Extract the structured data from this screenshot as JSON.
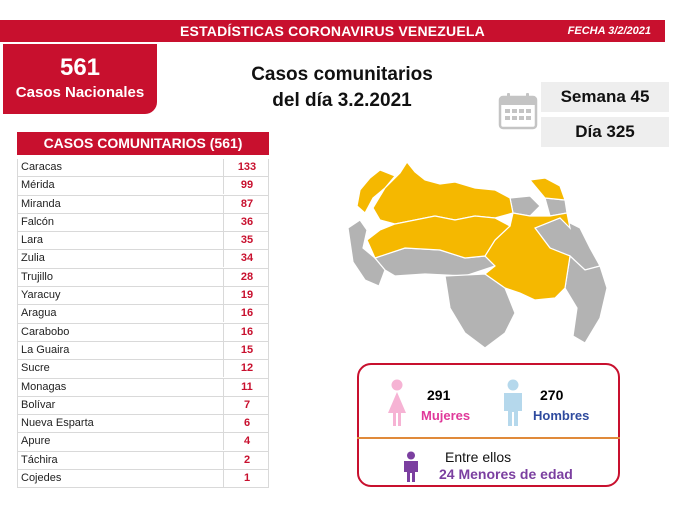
{
  "header": {
    "title": "ESTADÍSTICAS CORONAVIRUS VENEZUELA",
    "date": "FECHA 3/2/2021"
  },
  "national": {
    "count": "561",
    "label": "Casos Nacionales"
  },
  "heading": {
    "line1": "Casos comunitarios",
    "line2": "del día 3.2.2021"
  },
  "calendar": {
    "icon": "calendar-icon",
    "week": "Semana 45",
    "day": "Día 325"
  },
  "table": {
    "header": "CASOS COMUNITARIOS (561)",
    "rows": [
      {
        "state": "Caracas",
        "cases": "133"
      },
      {
        "state": "Mérida",
        "cases": "99"
      },
      {
        "state": "Miranda",
        "cases": "87"
      },
      {
        "state": "Falcón",
        "cases": "36"
      },
      {
        "state": "Lara",
        "cases": "35"
      },
      {
        "state": "Zulia",
        "cases": "34"
      },
      {
        "state": "Trujillo",
        "cases": "28"
      },
      {
        "state": "Yaracuy",
        "cases": "19"
      },
      {
        "state": "Aragua",
        "cases": "16"
      },
      {
        "state": "Carabobo",
        "cases": "16"
      },
      {
        "state": "La Guaira",
        "cases": "15"
      },
      {
        "state": "Sucre",
        "cases": "12"
      },
      {
        "state": "Monagas",
        "cases": "11"
      },
      {
        "state": "Bolívar",
        "cases": "7"
      },
      {
        "state": "Nueva Esparta",
        "cases": "6"
      },
      {
        "state": "Apure",
        "cases": "4"
      },
      {
        "state": "Táchira",
        "cases": "2"
      },
      {
        "state": "Cojedes",
        "cases": "1"
      }
    ]
  },
  "map": {
    "icon": "venezuela-map",
    "affected_color": "#f5b800",
    "unaffected_color": "#b3b3b3"
  },
  "demographics": {
    "women_count": "291",
    "women_label": "Mujeres",
    "women_color": "#e0399a",
    "men_count": "270",
    "men_label": "Hombres",
    "men_color": "#2e4a9e",
    "between_label": "Entre ellos",
    "minors_count": "24",
    "minors_label": "Menores de edad",
    "minors_color": "#7b3fa0"
  },
  "colors": {
    "brand_red": "#c8102e"
  }
}
